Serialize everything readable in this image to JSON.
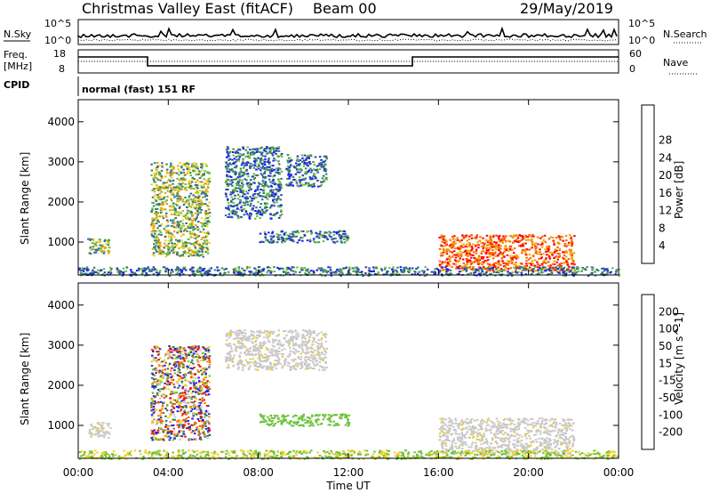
{
  "header": {
    "title": "Christmas Valley East (fitACF)",
    "beam": "Beam 00",
    "date": "29/May/2019"
  },
  "top_panels": {
    "nsky_label": "N.Sky",
    "nsearch_label": "N.Search",
    "counts_ticks": [
      "10^5",
      "10^0"
    ],
    "freq_label": "Freq.",
    "freq_unit": "[MHz]",
    "freq_ticks": [
      "18",
      "8"
    ],
    "nave_label": "Nave",
    "nave_ticks": [
      "60",
      "0"
    ],
    "cpid_label": "CPID",
    "cpid_value": "normal (fast) 151 RF"
  },
  "colors": {
    "power_scale": [
      "#1a1aff",
      "#2c3fa8",
      "#2f6d8a",
      "#3a8a5a",
      "#6bbf3a",
      "#f0d020",
      "#f0a000",
      "#ff6000",
      "#ff0000"
    ],
    "velocity_scale": [
      "#1a1aff",
      "#2c3fa8",
      "#2f7a66",
      "#6bc23c",
      "#c8c8c8",
      "#f0d020",
      "#f09000",
      "#ff5000",
      "#ff0000"
    ]
  },
  "chart_data": [
    {
      "type": "heatmap",
      "title": "Power",
      "xlabel": "Time UT",
      "ylabel": "Slant Range [km]",
      "x_ticks": [
        "00:00",
        "04:00",
        "08:00",
        "12:00",
        "16:00",
        "20:00",
        "00:00"
      ],
      "y_ticks": [
        "1000",
        "2000",
        "3000",
        "4000"
      ],
      "ylim": [
        180,
        4550
      ],
      "xlim_hours": [
        0,
        24
      ],
      "colorbar_label": "Power [dB]",
      "colorbar_ticks": [
        "4",
        "8",
        "12",
        "16",
        "20",
        "24",
        "28"
      ],
      "regions": [
        {
          "t0": 0.4,
          "t1": 1.4,
          "r0": 700,
          "r1": 1100,
          "level": "mid"
        },
        {
          "t0": 3.2,
          "t1": 5.8,
          "r0": 650,
          "r1": 3000,
          "level": "mid"
        },
        {
          "t0": 6.5,
          "t1": 9.0,
          "r0": 1600,
          "r1": 3400,
          "level": "low"
        },
        {
          "t0": 9.2,
          "t1": 11.0,
          "r0": 2400,
          "r1": 3200,
          "level": "low"
        },
        {
          "t0": 8.0,
          "t1": 12.0,
          "r0": 1000,
          "r1": 1300,
          "level": "low"
        },
        {
          "t0": 16.0,
          "t1": 22.0,
          "r0": 300,
          "r1": 1200,
          "level": "high"
        },
        {
          "t0": 0.0,
          "t1": 24.0,
          "r0": 180,
          "r1": 400,
          "level": "low"
        }
      ]
    },
    {
      "type": "heatmap",
      "title": "Velocity",
      "xlabel": "Time UT",
      "ylabel": "Slant Range [km]",
      "x_ticks": [
        "00:00",
        "04:00",
        "08:00",
        "12:00",
        "16:00",
        "20:00",
        "00:00"
      ],
      "y_ticks": [
        "1000",
        "2000",
        "3000",
        "4000"
      ],
      "ylim": [
        180,
        4550
      ],
      "xlim_hours": [
        0,
        24
      ],
      "colorbar_label": "Velocity [m s^-1]",
      "colorbar_ticks": [
        "200",
        "100",
        "50",
        "15",
        "-15",
        "-50",
        "-100",
        "-200"
      ],
      "regions": [
        {
          "t0": 0.4,
          "t1": 1.4,
          "r0": 700,
          "r1": 1100,
          "level": "gray"
        },
        {
          "t0": 3.2,
          "t1": 5.8,
          "r0": 650,
          "r1": 3000,
          "level": "mixed"
        },
        {
          "t0": 6.5,
          "t1": 11.0,
          "r0": 2400,
          "r1": 3400,
          "level": "gray"
        },
        {
          "t0": 8.0,
          "t1": 12.0,
          "r0": 1000,
          "r1": 1300,
          "level": "green"
        },
        {
          "t0": 16.0,
          "t1": 22.0,
          "r0": 300,
          "r1": 1200,
          "level": "gray"
        },
        {
          "t0": 0.0,
          "t1": 24.0,
          "r0": 180,
          "r1": 400,
          "level": "yellow"
        }
      ]
    }
  ]
}
